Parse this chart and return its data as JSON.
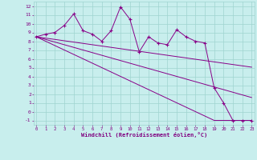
{
  "xlabel": "Windchill (Refroidissement éolien,°C)",
  "x_data": [
    0,
    1,
    2,
    3,
    4,
    5,
    6,
    7,
    8,
    9,
    10,
    11,
    12,
    13,
    14,
    15,
    16,
    17,
    18,
    19,
    20,
    21,
    22,
    23
  ],
  "main_line": [
    8.5,
    8.8,
    9.0,
    9.8,
    11.1,
    9.2,
    8.8,
    8.0,
    9.2,
    11.9,
    10.5,
    6.8,
    8.5,
    7.8,
    7.6,
    9.3,
    8.5,
    8.0,
    7.8,
    2.7,
    1.0,
    -1.0,
    -1.0,
    -1.0
  ],
  "regression_line1": [
    8.5,
    8.35,
    8.2,
    8.05,
    7.9,
    7.75,
    7.6,
    7.45,
    7.3,
    7.15,
    7.0,
    6.85,
    6.7,
    6.55,
    6.4,
    6.25,
    6.1,
    5.95,
    5.8,
    5.65,
    5.5,
    5.35,
    5.2,
    5.05
  ],
  "regression_line2": [
    8.5,
    8.2,
    7.9,
    7.6,
    7.3,
    7.0,
    6.7,
    6.4,
    6.1,
    5.8,
    5.5,
    5.2,
    4.9,
    4.6,
    4.3,
    4.0,
    3.7,
    3.4,
    3.1,
    2.8,
    2.5,
    2.2,
    1.9,
    1.6
  ],
  "regression_line3": [
    8.5,
    8.0,
    7.5,
    7.0,
    6.5,
    6.0,
    5.5,
    5.0,
    4.5,
    4.0,
    3.5,
    3.0,
    2.5,
    2.0,
    1.5,
    1.0,
    0.5,
    0.0,
    -0.5,
    -1.0,
    -1.0,
    -1.0,
    -1.0,
    -1.0
  ],
  "ylim": [
    -1.5,
    12.5
  ],
  "xlim": [
    -0.3,
    23.3
  ],
  "yticks": [
    -1,
    0,
    1,
    2,
    3,
    4,
    5,
    6,
    7,
    8,
    9,
    10,
    11,
    12
  ],
  "xticks": [
    0,
    1,
    2,
    3,
    4,
    5,
    6,
    7,
    8,
    9,
    10,
    11,
    12,
    13,
    14,
    15,
    16,
    17,
    18,
    19,
    20,
    21,
    22,
    23
  ],
  "line_color": "#880088",
  "bg_color": "#c8eeed",
  "grid_color": "#9fd4d0",
  "text_color": "#800080"
}
